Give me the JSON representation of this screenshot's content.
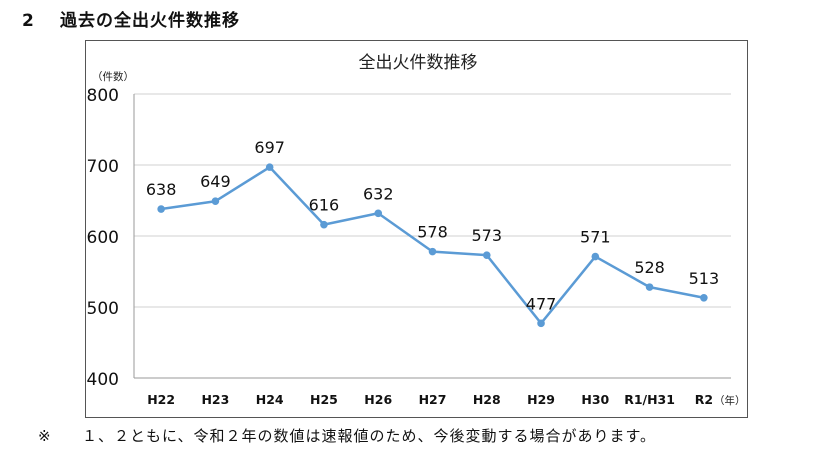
{
  "heading": {
    "number": "2",
    "title": "過去の全出火件数推移"
  },
  "footnote": {
    "mark": "※",
    "text": "１、２ともに、令和２年の数値は速報値のため、今後変動する場合があります。"
  },
  "chart_data": {
    "type": "line",
    "title": "全出火件数推移",
    "ylabel": "（件数）",
    "xlabel": "（年）",
    "categories": [
      "H22",
      "H23",
      "H24",
      "H25",
      "H26",
      "H27",
      "H28",
      "H29",
      "H30",
      "R1/H31",
      "R2"
    ],
    "series": [
      {
        "values": [
          638,
          649,
          697,
          616,
          632,
          578,
          573,
          477,
          571,
          528,
          513
        ]
      }
    ],
    "ylim": [
      400,
      800
    ],
    "yticks": [
      400,
      500,
      600,
      700,
      800
    ],
    "grid": true,
    "data_labels": true,
    "colors": {
      "line": "#5B9BD5",
      "grid": "#D0D0D0",
      "axis": "#9A9A9A"
    }
  }
}
